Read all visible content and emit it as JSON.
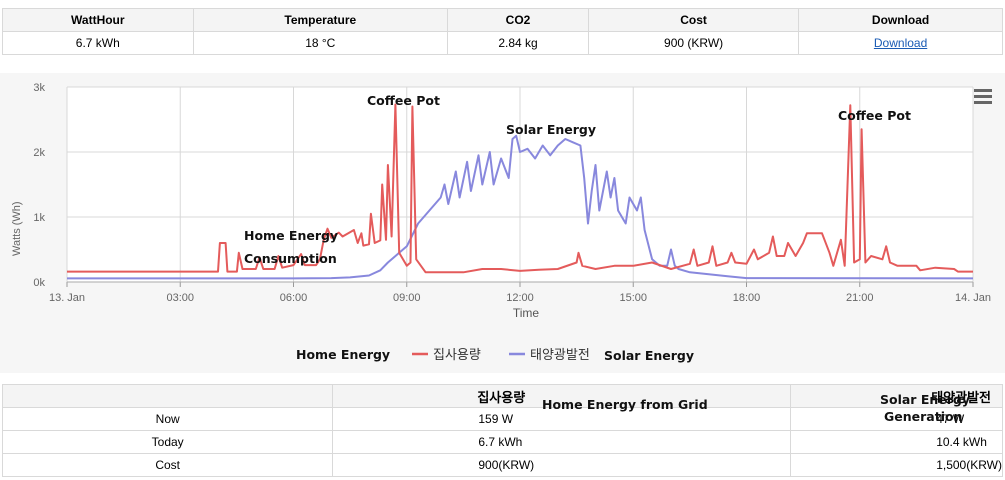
{
  "summary": {
    "headers": [
      "WattHour",
      "Temperature",
      "CO2",
      "Cost",
      "Download"
    ],
    "values": [
      "6.7 kWh",
      "18 °C",
      "2.84 kg",
      "900 (KRW)"
    ],
    "download_link": "Download"
  },
  "chart_data": {
    "type": "line",
    "xlabel": "Time",
    "ylabel": "Watts (Wh)",
    "ylim": [
      0,
      3000
    ],
    "xlim": [
      0,
      24
    ],
    "x_ticks": [
      "13. Jan",
      "03:00",
      "06:00",
      "09:00",
      "12:00",
      "15:00",
      "18:00",
      "21:00",
      "14. Jan"
    ],
    "y_ticks": [
      "0k",
      "1k",
      "2k",
      "3k"
    ],
    "grid": true,
    "legend_position": "bottom-center",
    "menu_icon": "hamburger-menu-icon",
    "annotations": [
      "Coffee Pot",
      "Solar Energy",
      "Coffee Pot",
      "Home Energy",
      "Consumption"
    ],
    "legend_extra": [
      "Home Energy",
      "Solar Energy"
    ],
    "series": [
      {
        "name": "집사용량",
        "color": "#e45b5b",
        "points": [
          [
            0,
            160
          ],
          [
            4.0,
            160
          ],
          [
            4.05,
            600
          ],
          [
            4.2,
            600
          ],
          [
            4.25,
            160
          ],
          [
            4.5,
            160
          ],
          [
            4.55,
            450
          ],
          [
            4.65,
            200
          ],
          [
            5.0,
            200
          ],
          [
            5.1,
            380
          ],
          [
            5.2,
            200
          ],
          [
            5.5,
            200
          ],
          [
            5.6,
            400
          ],
          [
            5.7,
            220
          ],
          [
            6.0,
            260
          ],
          [
            6.2,
            430
          ],
          [
            6.3,
            260
          ],
          [
            6.6,
            260
          ],
          [
            6.7,
            350
          ],
          [
            6.8,
            650
          ],
          [
            6.9,
            820
          ],
          [
            7.0,
            680
          ],
          [
            7.2,
            760
          ],
          [
            7.3,
            700
          ],
          [
            7.6,
            800
          ],
          [
            7.7,
            600
          ],
          [
            7.8,
            750
          ],
          [
            7.85,
            560
          ],
          [
            8.0,
            580
          ],
          [
            8.05,
            1050
          ],
          [
            8.15,
            600
          ],
          [
            8.3,
            640
          ],
          [
            8.35,
            1500
          ],
          [
            8.45,
            650
          ],
          [
            8.5,
            1800
          ],
          [
            8.6,
            700
          ],
          [
            8.7,
            2730
          ],
          [
            8.8,
            450
          ],
          [
            9.0,
            250
          ],
          [
            9.1,
            300
          ],
          [
            9.15,
            2700
          ],
          [
            9.25,
            350
          ],
          [
            9.5,
            150
          ],
          [
            10.0,
            150
          ],
          [
            10.5,
            150
          ],
          [
            11.0,
            200
          ],
          [
            11.5,
            200
          ],
          [
            12.0,
            170
          ],
          [
            12.5,
            190
          ],
          [
            13.0,
            200
          ],
          [
            13.5,
            300
          ],
          [
            13.55,
            450
          ],
          [
            13.65,
            250
          ],
          [
            14.0,
            200
          ],
          [
            14.5,
            250
          ],
          [
            15.0,
            250
          ],
          [
            15.5,
            300
          ],
          [
            16.0,
            200
          ],
          [
            16.5,
            280
          ],
          [
            16.6,
            500
          ],
          [
            16.7,
            250
          ],
          [
            17.0,
            300
          ],
          [
            17.1,
            550
          ],
          [
            17.2,
            250
          ],
          [
            17.5,
            300
          ],
          [
            17.6,
            450
          ],
          [
            17.7,
            300
          ],
          [
            18.0,
            280
          ],
          [
            18.2,
            500
          ],
          [
            18.3,
            350
          ],
          [
            18.6,
            450
          ],
          [
            18.7,
            700
          ],
          [
            18.8,
            400
          ],
          [
            19.0,
            400
          ],
          [
            19.1,
            600
          ],
          [
            19.3,
            400
          ],
          [
            19.5,
            600
          ],
          [
            19.6,
            750
          ],
          [
            20.0,
            750
          ],
          [
            20.2,
            450
          ],
          [
            20.3,
            250
          ],
          [
            20.5,
            650
          ],
          [
            20.6,
            250
          ],
          [
            20.75,
            2720
          ],
          [
            20.85,
            300
          ],
          [
            21.0,
            350
          ],
          [
            21.05,
            2350
          ],
          [
            21.15,
            300
          ],
          [
            21.3,
            400
          ],
          [
            21.6,
            350
          ],
          [
            21.7,
            550
          ],
          [
            21.8,
            300
          ],
          [
            22.0,
            250
          ],
          [
            22.5,
            250
          ],
          [
            22.6,
            180
          ],
          [
            23.0,
            220
          ],
          [
            23.5,
            200
          ],
          [
            23.6,
            160
          ],
          [
            24.0,
            160
          ]
        ]
      },
      {
        "name": "태양광발전",
        "color": "#8888dd",
        "points": [
          [
            0,
            55
          ],
          [
            6.0,
            55
          ],
          [
            7.0,
            60
          ],
          [
            7.5,
            70
          ],
          [
            8.0,
            100
          ],
          [
            8.3,
            180
          ],
          [
            8.5,
            300
          ],
          [
            8.8,
            450
          ],
          [
            9.0,
            550
          ],
          [
            9.3,
            900
          ],
          [
            9.6,
            1100
          ],
          [
            9.9,
            1300
          ],
          [
            10.0,
            1500
          ],
          [
            10.1,
            1200
          ],
          [
            10.3,
            1700
          ],
          [
            10.4,
            1300
          ],
          [
            10.6,
            1850
          ],
          [
            10.7,
            1400
          ],
          [
            10.9,
            1950
          ],
          [
            11.0,
            1500
          ],
          [
            11.2,
            2000
          ],
          [
            11.3,
            1500
          ],
          [
            11.5,
            1900
          ],
          [
            11.7,
            1600
          ],
          [
            11.8,
            2200
          ],
          [
            11.9,
            2250
          ],
          [
            12.0,
            2000
          ],
          [
            12.2,
            2050
          ],
          [
            12.4,
            1900
          ],
          [
            12.6,
            2100
          ],
          [
            12.8,
            1950
          ],
          [
            13.0,
            2100
          ],
          [
            13.2,
            2200
          ],
          [
            13.4,
            2150
          ],
          [
            13.6,
            2100
          ],
          [
            13.7,
            1600
          ],
          [
            13.8,
            900
          ],
          [
            13.9,
            1400
          ],
          [
            14.0,
            1800
          ],
          [
            14.1,
            1100
          ],
          [
            14.3,
            1700
          ],
          [
            14.4,
            1300
          ],
          [
            14.5,
            1600
          ],
          [
            14.6,
            1100
          ],
          [
            14.8,
            900
          ],
          [
            14.9,
            1300
          ],
          [
            15.1,
            1100
          ],
          [
            15.2,
            1300
          ],
          [
            15.3,
            800
          ],
          [
            15.5,
            350
          ],
          [
            15.7,
            250
          ],
          [
            15.9,
            250
          ],
          [
            16.0,
            500
          ],
          [
            16.1,
            250
          ],
          [
            16.2,
            200
          ],
          [
            16.5,
            150
          ],
          [
            17.0,
            120
          ],
          [
            17.5,
            90
          ],
          [
            18.0,
            60
          ],
          [
            24.0,
            55
          ]
        ]
      }
    ]
  },
  "bottom_table": {
    "headers": [
      "",
      "집사용량",
      "태양광발전"
    ],
    "rows": [
      {
        "label": "Now",
        "home": "159 W",
        "solar": "47 W"
      },
      {
        "label": "Today",
        "home": "6.7 kWh",
        "solar": "10.4 kWh"
      },
      {
        "label": "Cost",
        "home": "900(KRW)",
        "solar": "1,500(KRW)"
      }
    ],
    "overlay_home": "Home Energy  from Grid",
    "overlay_solar_1": "Solar Energy",
    "overlay_solar_2": "Generation"
  }
}
